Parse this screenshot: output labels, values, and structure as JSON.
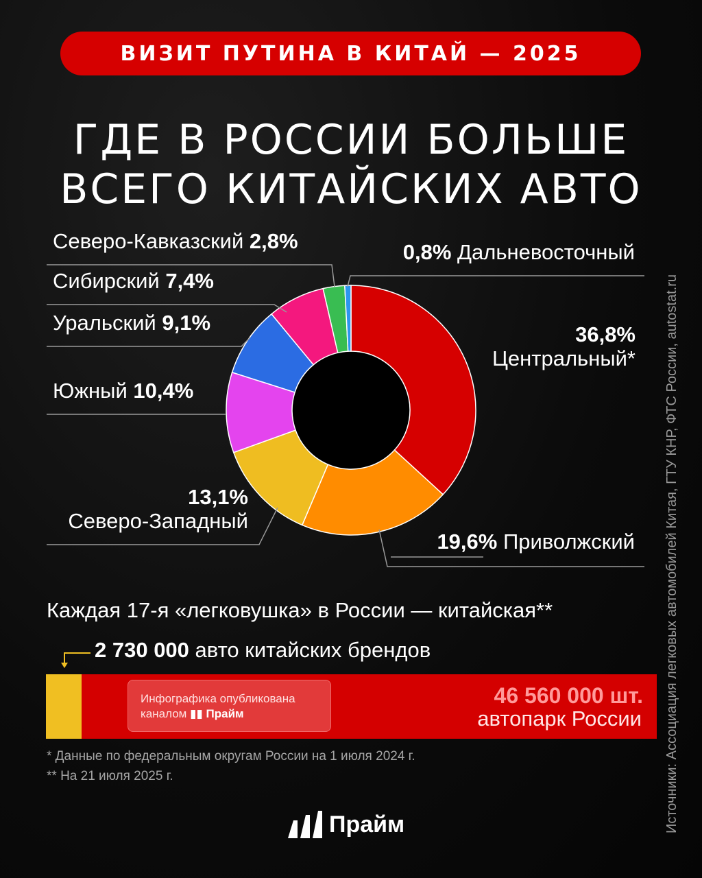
{
  "banner": "ВИЗИТ ПУТИНА В КИТАЙ — 2025",
  "title": {
    "line1": "ГДЕ В РОССИИ БОЛЬШЕ",
    "line2": "ВСЕГО КИТАЙСКИХ АВТО"
  },
  "source": "Источники: Ассоциация легковых автомобилей Китая, ГТУ КНР, ФТС России, autostat.ru",
  "chart_data": {
    "type": "pie",
    "title": "ГДЕ В РОССИИ БОЛЬШЕ ВСЕГО КИТАЙСКИХ АВТО",
    "value_unit": "%",
    "slices": [
      {
        "name": "Центральный*",
        "value": 36.8,
        "label": "36,8%",
        "color": "#d60000"
      },
      {
        "name": "Приволжский",
        "value": 19.6,
        "label": "19,6%",
        "color": "#ff8c00"
      },
      {
        "name": "Северо-Западный",
        "value": 13.1,
        "label": "13,1%",
        "color": "#efbd21"
      },
      {
        "name": "Южный",
        "value": 10.4,
        "label": "10,4%",
        "color": "#e444ee"
      },
      {
        "name": "Уральский",
        "value": 9.1,
        "label": "9,1%",
        "color": "#2b6ce3"
      },
      {
        "name": "Сибирский",
        "value": 7.4,
        "label": "7,4%",
        "color": "#f4187e"
      },
      {
        "name": "Северо-Кавказский",
        "value": 2.8,
        "label": "2,8%",
        "color": "#39bd52"
      },
      {
        "name": "Дальневосточный",
        "value": 0.8,
        "label": "0,8%",
        "color": "#2c96f0"
      }
    ]
  },
  "share_line": "Каждая 17-я «легковушка» в России  —  китайская**",
  "brands": {
    "value": "2 730 000",
    "text": " авто китайских брендов",
    "value_number": 2730000
  },
  "fleet": {
    "value": "46 560 000 шт.",
    "label": "автопарк России",
    "value_number": 46560000
  },
  "promo": {
    "line1": "Инфографика опубликована",
    "line2_prefix": "каналом",
    "channel": "Прайм"
  },
  "notes": [
    "* Данные по федеральным округам России на 1 июля 2024 г.",
    "** На 21 июля 2025 г."
  ],
  "footer_brand": "Прайм"
}
